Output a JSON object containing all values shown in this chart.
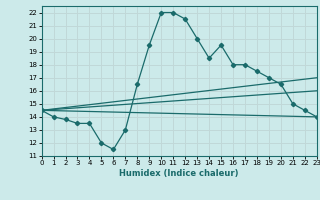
{
  "xlabel": "Humidex (Indice chaleur)",
  "bg_color": "#cceaea",
  "grid_color": "#c0d8d8",
  "line_color": "#1a6b6b",
  "xlim": [
    0,
    23
  ],
  "ylim": [
    11,
    22.5
  ],
  "xticks": [
    0,
    1,
    2,
    3,
    4,
    5,
    6,
    7,
    8,
    9,
    10,
    11,
    12,
    13,
    14,
    15,
    16,
    17,
    18,
    19,
    20,
    21,
    22,
    23
  ],
  "yticks": [
    11,
    12,
    13,
    14,
    15,
    16,
    17,
    18,
    19,
    20,
    21,
    22
  ],
  "line1_x": [
    0,
    1,
    2,
    3,
    4,
    5,
    6,
    7,
    8,
    9,
    10,
    11,
    12,
    13,
    14,
    15,
    16,
    17,
    18,
    19,
    20,
    21,
    22,
    23
  ],
  "line1_y": [
    14.5,
    14.0,
    13.8,
    13.5,
    13.5,
    12.0,
    11.5,
    13.0,
    16.5,
    19.5,
    22.0,
    22.0,
    21.5,
    20.0,
    18.5,
    19.5,
    18.0,
    18.0,
    17.5,
    17.0,
    16.5,
    15.0,
    14.5,
    14.0
  ],
  "line2_x": [
    0,
    23
  ],
  "line2_y": [
    14.5,
    17.0
  ],
  "line3_x": [
    0,
    23
  ],
  "line3_y": [
    14.5,
    14.0
  ],
  "line4_x": [
    0,
    23
  ],
  "line4_y": [
    14.5,
    16.0
  ]
}
